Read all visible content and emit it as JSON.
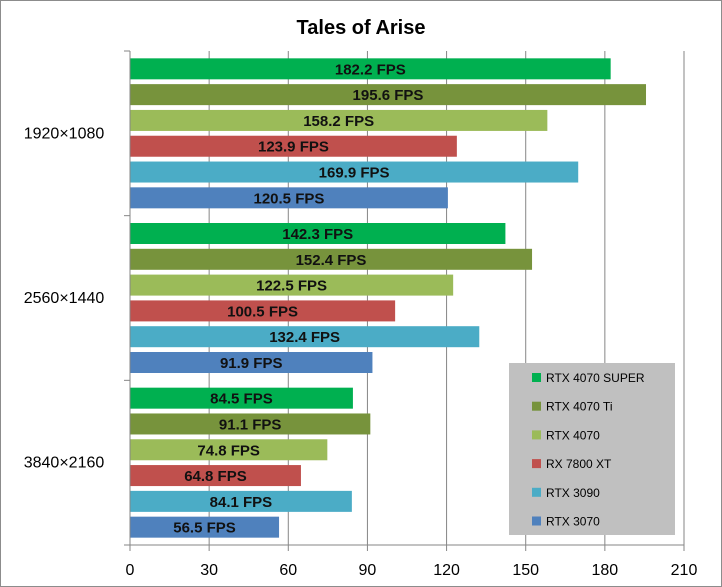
{
  "chart_data": {
    "type": "bar",
    "orientation": "horizontal",
    "title": "Tales of Arise",
    "xlabel": "",
    "ylabel": "",
    "categories": [
      "1920×1080",
      "2560×1440",
      "3840×2160"
    ],
    "series": [
      {
        "name": "RTX 4070 SUPER",
        "color": "#00b050",
        "values": [
          182.2,
          142.3,
          84.5
        ],
        "labels": [
          "182.2 FPS",
          "142.3 FPS",
          "84.5 FPS"
        ]
      },
      {
        "name": "RTX 4070 Ti",
        "color": "#77933c",
        "values": [
          195.6,
          152.4,
          91.1
        ],
        "labels": [
          "195.6 FPS",
          "152.4 FPS",
          "91.1 FPS"
        ]
      },
      {
        "name": "RTX 4070",
        "color": "#9bbb59",
        "values": [
          158.2,
          122.5,
          74.8
        ],
        "labels": [
          "158.2 FPS",
          "122.5 FPS",
          "74.8 FPS"
        ]
      },
      {
        "name": "RX 7800 XT",
        "color": "#c0504d",
        "values": [
          123.9,
          100.5,
          64.8
        ],
        "labels": [
          "123.9 FPS",
          "100.5 FPS",
          "64.8 FPS"
        ]
      },
      {
        "name": "RTX 3090",
        "color": "#4bacc6",
        "values": [
          169.9,
          132.4,
          84.1
        ],
        "labels": [
          "169.9 FPS",
          "132.4 FPS",
          "84.1 FPS"
        ]
      },
      {
        "name": "RTX 3070",
        "color": "#4f81bd",
        "values": [
          120.5,
          91.9,
          56.5
        ],
        "labels": [
          "120.5 FPS",
          "91.9 FPS",
          "56.5 FPS"
        ]
      }
    ],
    "xlim": [
      0,
      210
    ],
    "xticks": [
      "0",
      "30",
      "60",
      "90",
      "120",
      "150",
      "180",
      "210"
    ],
    "grid": "vertical",
    "legend_position": "bottom-right",
    "legend_background": "#c0c0c0",
    "gridline_color": "#868686"
  }
}
